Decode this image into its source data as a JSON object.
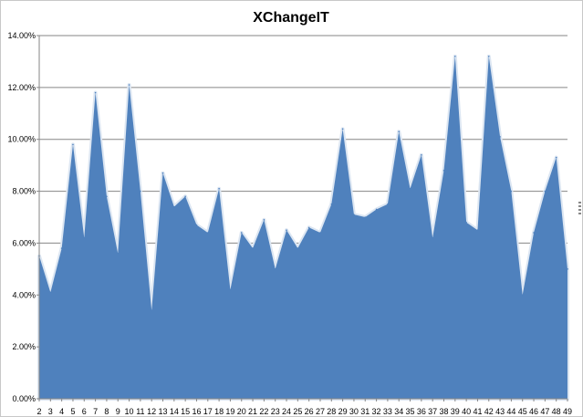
{
  "chart_data": {
    "type": "area",
    "title": "XChangeIT",
    "xlabel": "",
    "ylabel": "",
    "ylim": [
      0,
      14
    ],
    "y_tick_values": [
      0,
      2,
      4,
      6,
      8,
      10,
      12,
      14
    ],
    "y_tick_labels": [
      "0.00%",
      "2.00%",
      "4.00%",
      "6.00%",
      "8.00%",
      "10.00%",
      "12.00%",
      "14.00%"
    ],
    "grid": true,
    "legend": "none",
    "color": "#4f81bd",
    "categories": [
      "2",
      "3",
      "4",
      "5",
      "6",
      "7",
      "8",
      "9",
      "10",
      "11",
      "12",
      "13",
      "14",
      "15",
      "16",
      "17",
      "18",
      "19",
      "20",
      "21",
      "22",
      "23",
      "24",
      "25",
      "26",
      "27",
      "28",
      "29",
      "30",
      "31",
      "32",
      "33",
      "34",
      "35",
      "36",
      "37",
      "38",
      "39",
      "40",
      "41",
      "42",
      "43",
      "44",
      "45",
      "46",
      "47",
      "48",
      "49"
    ],
    "values": [
      5.5,
      4.1,
      5.8,
      9.8,
      6.2,
      11.8,
      7.8,
      5.6,
      12.1,
      8.0,
      3.4,
      8.7,
      7.4,
      7.8,
      6.7,
      6.4,
      8.1,
      4.2,
      6.4,
      5.8,
      6.9,
      5.0,
      6.5,
      5.8,
      6.6,
      6.4,
      7.5,
      10.4,
      7.1,
      7.0,
      7.3,
      7.5,
      10.3,
      8.1,
      9.4,
      6.2,
      8.8,
      13.2,
      6.8,
      6.5,
      13.2,
      10.1,
      8.0,
      4.0,
      6.4,
      8.0,
      9.3,
      5.0
    ]
  }
}
